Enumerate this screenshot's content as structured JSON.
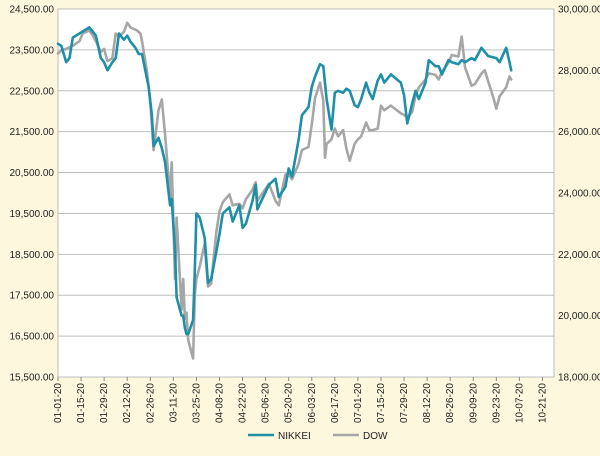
{
  "chart_data": {
    "type": "line",
    "title": "",
    "y_left": {
      "min": 15500,
      "max": 24500,
      "ticks": [
        15500,
        16500,
        17500,
        18500,
        19500,
        20500,
        21500,
        22500,
        23500,
        24500
      ],
      "tick_labels": [
        "15,500.00",
        "16,500.00",
        "17,500.00",
        "18,500.00",
        "19,500.00",
        "20,500.00",
        "21,500.00",
        "22,500.00",
        "23,500.00",
        "24,500.00"
      ]
    },
    "y_right": {
      "min": 18000,
      "max": 30000,
      "ticks": [
        18000,
        20000,
        22000,
        24000,
        26000,
        28000,
        30000
      ],
      "tick_labels": [
        "18,000.00",
        "20,000.00",
        "22,000.00",
        "24,000.00",
        "26,000.00",
        "28,000.00",
        "30,000.00"
      ]
    },
    "x_axis": {
      "start": "2020-01-01",
      "end": "2020-10-28",
      "tick_labels": [
        "01-01-20",
        "01-15-20",
        "01-29-20",
        "02-12-20",
        "02-26-20",
        "03-11-20",
        "03-25-20",
        "04-08-20",
        "04-22-20",
        "05-06-20",
        "05-20-20",
        "06-03-20",
        "06-17-20",
        "07-01-20",
        "07-15-20",
        "07-29-20",
        "08-12-20",
        "08-26-20",
        "09-09-20",
        "09-23-20",
        "10-07-20",
        "10-21-20"
      ]
    },
    "grid": true,
    "legend_position": "bottom",
    "series": [
      {
        "name": "NIKKEI",
        "color": "#1f8fa8",
        "axis": "left",
        "points": [
          [
            "2020-01-01",
            23650
          ],
          [
            "2020-01-03",
            23600
          ],
          [
            "2020-01-06",
            23200
          ],
          [
            "2020-01-08",
            23300
          ],
          [
            "2020-01-10",
            23800
          ],
          [
            "2020-01-14",
            23900
          ],
          [
            "2020-01-16",
            23950
          ],
          [
            "2020-01-20",
            24050
          ],
          [
            "2020-01-22",
            23950
          ],
          [
            "2020-01-24",
            23850
          ],
          [
            "2020-01-27",
            23300
          ],
          [
            "2020-01-29",
            23200
          ],
          [
            "2020-01-31",
            23000
          ],
          [
            "2020-02-03",
            23200
          ],
          [
            "2020-02-05",
            23300
          ],
          [
            "2020-02-07",
            23900
          ],
          [
            "2020-02-10",
            23750
          ],
          [
            "2020-02-12",
            23850
          ],
          [
            "2020-02-14",
            23700
          ],
          [
            "2020-02-17",
            23550
          ],
          [
            "2020-02-19",
            23400
          ],
          [
            "2020-02-21",
            23400
          ],
          [
            "2020-02-25",
            22600
          ],
          [
            "2020-02-27",
            21900
          ],
          [
            "2020-02-28",
            21150
          ],
          [
            "2020-03-02",
            21350
          ],
          [
            "2020-03-04",
            21100
          ],
          [
            "2020-03-06",
            20750
          ],
          [
            "2020-03-09",
            19700
          ],
          [
            "2020-03-10",
            19850
          ],
          [
            "2020-03-12",
            18600
          ],
          [
            "2020-03-13",
            17450
          ],
          [
            "2020-03-16",
            17000
          ],
          [
            "2020-03-17",
            17000
          ],
          [
            "2020-03-18",
            16700
          ],
          [
            "2020-03-19",
            16550
          ],
          [
            "2020-03-20",
            16550
          ],
          [
            "2020-03-23",
            16900
          ],
          [
            "2020-03-24",
            18100
          ],
          [
            "2020-03-25",
            19500
          ],
          [
            "2020-03-27",
            19400
          ],
          [
            "2020-03-30",
            18900
          ],
          [
            "2020-04-01",
            17800
          ],
          [
            "2020-04-03",
            17900
          ],
          [
            "2020-04-06",
            18550
          ],
          [
            "2020-04-08",
            19000
          ],
          [
            "2020-04-10",
            19500
          ],
          [
            "2020-04-14",
            19650
          ],
          [
            "2020-04-16",
            19300
          ],
          [
            "2020-04-20",
            19700
          ],
          [
            "2020-04-22",
            19150
          ],
          [
            "2020-04-24",
            19250
          ],
          [
            "2020-04-28",
            19800
          ],
          [
            "2020-04-30",
            20200
          ],
          [
            "2020-05-01",
            19600
          ],
          [
            "2020-05-08",
            20200
          ],
          [
            "2020-05-12",
            20350
          ],
          [
            "2020-05-14",
            19900
          ],
          [
            "2020-05-18",
            20150
          ],
          [
            "2020-05-20",
            20600
          ],
          [
            "2020-05-22",
            20400
          ],
          [
            "2020-05-26",
            21300
          ],
          [
            "2020-05-28",
            21900
          ],
          [
            "2020-06-01",
            22100
          ],
          [
            "2020-06-03",
            22600
          ],
          [
            "2020-06-05",
            22850
          ],
          [
            "2020-06-08",
            23150
          ],
          [
            "2020-06-10",
            23100
          ],
          [
            "2020-06-12",
            22300
          ],
          [
            "2020-06-15",
            21550
          ],
          [
            "2020-06-17",
            22450
          ],
          [
            "2020-06-19",
            22500
          ],
          [
            "2020-06-22",
            22450
          ],
          [
            "2020-06-24",
            22550
          ],
          [
            "2020-06-26",
            22500
          ],
          [
            "2020-06-29",
            22150
          ],
          [
            "2020-07-01",
            22100
          ],
          [
            "2020-07-03",
            22300
          ],
          [
            "2020-07-06",
            22700
          ],
          [
            "2020-07-08",
            22450
          ],
          [
            "2020-07-10",
            22300
          ],
          [
            "2020-07-13",
            22750
          ],
          [
            "2020-07-15",
            22900
          ],
          [
            "2020-07-17",
            22700
          ],
          [
            "2020-07-21",
            22900
          ],
          [
            "2020-07-27",
            22700
          ],
          [
            "2020-07-29",
            22400
          ],
          [
            "2020-07-31",
            21700
          ],
          [
            "2020-08-03",
            22200
          ],
          [
            "2020-08-05",
            22500
          ],
          [
            "2020-08-07",
            22300
          ],
          [
            "2020-08-11",
            22700
          ],
          [
            "2020-08-13",
            23250
          ],
          [
            "2020-08-17",
            23100
          ],
          [
            "2020-08-19",
            23100
          ],
          [
            "2020-08-21",
            22900
          ],
          [
            "2020-08-25",
            23250
          ],
          [
            "2020-08-27",
            23200
          ],
          [
            "2020-08-31",
            23150
          ],
          [
            "2020-09-02",
            23250
          ],
          [
            "2020-09-04",
            23200
          ],
          [
            "2020-09-08",
            23300
          ],
          [
            "2020-09-10",
            23250
          ],
          [
            "2020-09-14",
            23550
          ],
          [
            "2020-09-16",
            23450
          ],
          [
            "2020-09-18",
            23350
          ],
          [
            "2020-09-23",
            23300
          ],
          [
            "2020-09-25",
            23200
          ],
          [
            "2020-09-29",
            23550
          ],
          [
            "2020-10-01",
            23200
          ],
          [
            "2020-10-02",
            23000
          ]
        ]
      },
      {
        "name": "DOW",
        "color": "#a6a6a6",
        "axis": "right",
        "points": [
          [
            "2020-01-01",
            28550
          ],
          [
            "2020-01-03",
            28650
          ],
          [
            "2020-01-06",
            28700
          ],
          [
            "2020-01-08",
            28750
          ],
          [
            "2020-01-10",
            28800
          ],
          [
            "2020-01-14",
            28950
          ],
          [
            "2020-01-16",
            29200
          ],
          [
            "2020-01-20",
            29300
          ],
          [
            "2020-01-22",
            29150
          ],
          [
            "2020-01-24",
            28950
          ],
          [
            "2020-01-27",
            28600
          ],
          [
            "2020-01-29",
            28700
          ],
          [
            "2020-01-31",
            28300
          ],
          [
            "2020-02-03",
            28400
          ],
          [
            "2020-02-05",
            29200
          ],
          [
            "2020-02-07",
            29100
          ],
          [
            "2020-02-10",
            29250
          ],
          [
            "2020-02-12",
            29550
          ],
          [
            "2020-02-14",
            29400
          ],
          [
            "2020-02-18",
            29300
          ],
          [
            "2020-02-20",
            29200
          ],
          [
            "2020-02-21",
            28950
          ],
          [
            "2020-02-24",
            27950
          ],
          [
            "2020-02-26",
            26950
          ],
          [
            "2020-02-28",
            25400
          ],
          [
            "2020-03-02",
            26700
          ],
          [
            "2020-03-04",
            27050
          ],
          [
            "2020-03-06",
            25900
          ],
          [
            "2020-03-09",
            23850
          ],
          [
            "2020-03-10",
            25000
          ],
          [
            "2020-03-12",
            21200
          ],
          [
            "2020-03-13",
            23200
          ],
          [
            "2020-03-16",
            20200
          ],
          [
            "2020-03-17",
            21200
          ],
          [
            "2020-03-18",
            19900
          ],
          [
            "2020-03-19",
            20100
          ],
          [
            "2020-03-20",
            19200
          ],
          [
            "2020-03-23",
            18600
          ],
          [
            "2020-03-24",
            20700
          ],
          [
            "2020-03-25",
            21200
          ],
          [
            "2020-03-27",
            21600
          ],
          [
            "2020-03-30",
            22350
          ],
          [
            "2020-04-01",
            20950
          ],
          [
            "2020-04-03",
            21050
          ],
          [
            "2020-04-06",
            22700
          ],
          [
            "2020-04-08",
            23400
          ],
          [
            "2020-04-10",
            23700
          ],
          [
            "2020-04-14",
            23950
          ],
          [
            "2020-04-16",
            23600
          ],
          [
            "2020-04-20",
            23650
          ],
          [
            "2020-04-22",
            23500
          ],
          [
            "2020-04-24",
            23800
          ],
          [
            "2020-04-28",
            24100
          ],
          [
            "2020-04-30",
            24350
          ],
          [
            "2020-05-01",
            23750
          ],
          [
            "2020-05-08",
            24300
          ],
          [
            "2020-05-12",
            23750
          ],
          [
            "2020-05-14",
            23600
          ],
          [
            "2020-05-18",
            24600
          ],
          [
            "2020-05-20",
            24600
          ],
          [
            "2020-05-22",
            24450
          ],
          [
            "2020-05-26",
            24950
          ],
          [
            "2020-05-28",
            25400
          ],
          [
            "2020-06-01",
            25500
          ],
          [
            "2020-06-03",
            26250
          ],
          [
            "2020-06-05",
            27100
          ],
          [
            "2020-06-08",
            27600
          ],
          [
            "2020-06-10",
            27000
          ],
          [
            "2020-06-11",
            25150
          ],
          [
            "2020-06-12",
            25600
          ],
          [
            "2020-06-15",
            25750
          ],
          [
            "2020-06-17",
            26100
          ],
          [
            "2020-06-19",
            25850
          ],
          [
            "2020-06-22",
            26050
          ],
          [
            "2020-06-24",
            25450
          ],
          [
            "2020-06-26",
            25050
          ],
          [
            "2020-06-29",
            25600
          ],
          [
            "2020-07-01",
            25750
          ],
          [
            "2020-07-03",
            25850
          ],
          [
            "2020-07-06",
            26300
          ],
          [
            "2020-07-08",
            26050
          ],
          [
            "2020-07-10",
            26050
          ],
          [
            "2020-07-13",
            26100
          ],
          [
            "2020-07-15",
            26850
          ],
          [
            "2020-07-17",
            26700
          ],
          [
            "2020-07-21",
            26850
          ],
          [
            "2020-07-27",
            26600
          ],
          [
            "2020-07-29",
            26550
          ],
          [
            "2020-07-31",
            26450
          ],
          [
            "2020-08-03",
            26650
          ],
          [
            "2020-08-05",
            27200
          ],
          [
            "2020-08-07",
            27450
          ],
          [
            "2020-08-11",
            27700
          ],
          [
            "2020-08-13",
            27900
          ],
          [
            "2020-08-17",
            27850
          ],
          [
            "2020-08-19",
            27700
          ],
          [
            "2020-08-21",
            27950
          ],
          [
            "2020-08-25",
            28250
          ],
          [
            "2020-08-27",
            28500
          ],
          [
            "2020-08-31",
            28450
          ],
          [
            "2020-09-02",
            29100
          ],
          [
            "2020-09-04",
            28100
          ],
          [
            "2020-09-08",
            27500
          ],
          [
            "2020-09-10",
            27550
          ],
          [
            "2020-09-14",
            27900
          ],
          [
            "2020-09-16",
            28000
          ],
          [
            "2020-09-18",
            27650
          ],
          [
            "2020-09-21",
            27150
          ],
          [
            "2020-09-23",
            26750
          ],
          [
            "2020-09-25",
            27150
          ],
          [
            "2020-09-29",
            27450
          ],
          [
            "2020-10-01",
            27800
          ],
          [
            "2020-10-02",
            27700
          ]
        ]
      }
    ]
  }
}
